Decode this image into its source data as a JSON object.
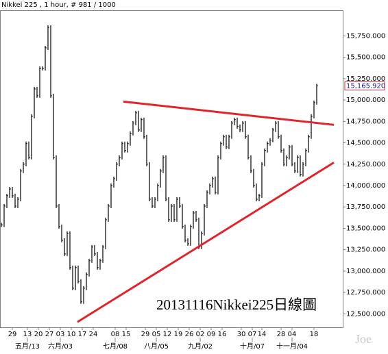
{
  "chart_data": {
    "type": "bar-chart",
    "title": "Nikkei 225 , 1 hour, # 981 / 1000",
    "annotation": "20131116Nikkei225日線圖",
    "watermark": "Joe",
    "color": "#000000",
    "xlim": [
      -0.5,
      124.5
    ],
    "ylim": [
      12350,
      16050
    ],
    "yticks": [
      {
        "value": 12500,
        "label": "12,500.000"
      },
      {
        "value": 12750,
        "label": "12,750.000"
      },
      {
        "value": 13000,
        "label": "13,000.000"
      },
      {
        "value": 13250,
        "label": "13,250.000"
      },
      {
        "value": 13500,
        "label": "13,500.000"
      },
      {
        "value": 13750,
        "label": "13,750.000"
      },
      {
        "value": 14000,
        "label": "14,000.000"
      },
      {
        "value": 14250,
        "label": "14,250.000"
      },
      {
        "value": 14500,
        "label": "14,500.000"
      },
      {
        "value": 14750,
        "label": "14,750.000"
      },
      {
        "value": 15000,
        "label": "15,000.000"
      },
      {
        "value": 15250,
        "label": "15,250.000"
      },
      {
        "value": 15500,
        "label": "15,500.000"
      },
      {
        "value": 15750,
        "label": "15,750.000"
      }
    ],
    "xticks": [
      {
        "value": 4,
        "label": "29"
      },
      {
        "value": 9.5,
        "label": "13"
      },
      {
        "value": 13.5,
        "label": "20"
      },
      {
        "value": 17.5,
        "label": "27"
      },
      {
        "value": 21.5,
        "label": "03"
      },
      {
        "value": 25.5,
        "label": "10"
      },
      {
        "value": 29.5,
        "label": "17"
      },
      {
        "value": 33.5,
        "label": "24"
      },
      {
        "value": 41.5,
        "label": "08"
      },
      {
        "value": 45.5,
        "label": "15"
      },
      {
        "value": 52.5,
        "label": "29"
      },
      {
        "value": 56.5,
        "label": "05"
      },
      {
        "value": 60.5,
        "label": "12"
      },
      {
        "value": 64.5,
        "label": "19"
      },
      {
        "value": 68.5,
        "label": "26"
      },
      {
        "value": 72.5,
        "label": "02"
      },
      {
        "value": 76.5,
        "label": "09"
      },
      {
        "value": 80.5,
        "label": "16"
      },
      {
        "value": 87.5,
        "label": "30"
      },
      {
        "value": 91.5,
        "label": "07"
      },
      {
        "value": 95,
        "label": "14"
      },
      {
        "value": 102,
        "label": "28"
      },
      {
        "value": 106,
        "label": "04"
      },
      {
        "value": 114,
        "label": "18"
      }
    ],
    "month_ticks": [
      {
        "value": 9.5,
        "label": "五月/13"
      },
      {
        "value": 21.5,
        "label": "六月/03"
      },
      {
        "value": 41.5,
        "label": "七月/08"
      },
      {
        "value": 56.5,
        "label": "八月/05"
      },
      {
        "value": 72.5,
        "label": "九月/02"
      },
      {
        "value": 91.5,
        "label": "十月/07"
      },
      {
        "value": 106,
        "label": "十一月/04"
      }
    ],
    "values": [
      13540,
      13760,
      13880,
      13960,
      13880,
      13760,
      13840,
      14170,
      14250,
      14490,
      14330,
      14810,
      15130,
      15050,
      15370,
      15370,
      15610,
      15850,
      15050,
      14330,
      13760,
      13520,
      13360,
      13200,
      13440,
      13040,
      12800,
      13040,
      12880,
      12640,
      12800,
      12960,
      13120,
      13280,
      13200,
      13040,
      13120,
      13280,
      13600,
      13760,
      14000,
      14080,
      14250,
      14330,
      14490,
      14410,
      14490,
      14610,
      14730,
      14850,
      14650,
      14770,
      14570,
      14250,
      13840,
      13760,
      13840,
      14000,
      14170,
      14330,
      13840,
      13600,
      13760,
      13600,
      13840,
      13760,
      13520,
      13360,
      13320,
      13520,
      13680,
      13600,
      13280,
      13440,
      13760,
      13920,
      14000,
      14080,
      13920,
      14330,
      14490,
      14570,
      14450,
      14570,
      14730,
      14770,
      14690,
      14650,
      14730,
      14570,
      14330,
      14170,
      14000,
      13840,
      13880,
      14250,
      14410,
      14490,
      14530,
      14650,
      14730,
      14570,
      14410,
      14250,
      14330,
      14450,
      14250,
      14170,
      14330,
      14130,
      14250,
      14410,
      14570,
      14810,
      14970,
      15165.92
    ],
    "last_price": {
      "value": 15165.92,
      "label": "15,165.920"
    },
    "trendlines": [
      {
        "color": "#e0242c",
        "x": [
          44.5,
          121.25
        ],
        "values": [
          14982,
          14710
        ]
      },
      {
        "color": "#e0242c",
        "x": [
          27.75,
          121.25
        ],
        "values": [
          12404,
          14269
        ]
      }
    ]
  }
}
